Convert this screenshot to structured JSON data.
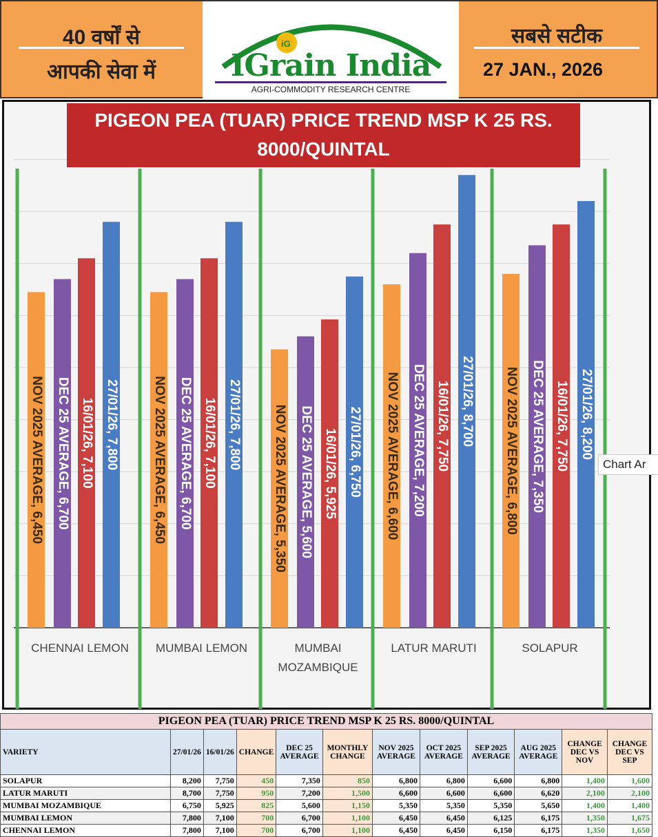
{
  "header": {
    "left_line1": "40 वर्षों से",
    "left_line2": "आपकी सेवा में",
    "logo_name": "IGrain India",
    "logo_sub": "AGRI-COMMODITY RESEARCH CENTRE",
    "logo_badge": "iG",
    "right_line1": "सबसे सटीक",
    "date": "27 JAN., 2026"
  },
  "tooltip": "Chart Ar",
  "chart_data": {
    "type": "bar",
    "title": "PIGEON PEA (TUAR) PRICE TREND MSP K 25 RS. 8000/QUINTAL",
    "title_line1": "PIGEON PEA (TUAR) PRICE TREND MSP K 25 RS.",
    "title_line2": "8000/QUINTAL",
    "categories": [
      "CHENNAI LEMON",
      "MUMBAI LEMON",
      "MUMBAI MOZAMBIQUE",
      "LATUR MARUTI",
      "SOLAPUR"
    ],
    "series": [
      {
        "name": "NOV 2025 AVERAGE",
        "color": "#f39a42",
        "values": [
          6450,
          6450,
          5350,
          6600,
          6800
        ]
      },
      {
        "name": "DEC 25 AVERAGE",
        "color": "#7e58a6",
        "values": [
          6700,
          6700,
          5600,
          7200,
          7350
        ]
      },
      {
        "name": "16/01/26",
        "color": "#c9403f",
        "values": [
          7100,
          7100,
          5925,
          7750,
          7750
        ]
      },
      {
        "name": "27/01/26",
        "color": "#4a7cc4",
        "values": [
          7800,
          7800,
          6750,
          8700,
          8200
        ]
      }
    ],
    "ylim": [
      0,
      9000
    ],
    "grid": true,
    "legend": "none"
  },
  "table": {
    "caption": "PIGEON PEA (TUAR) PRICE TREND MSP K 25 RS. 8000/QUINTAL",
    "headers": [
      "VARIETY",
      "27/01/26",
      "16/01/26",
      "CHANGE",
      "DEC 25 AVERAGE",
      "MONTHLY CHANGE",
      "NOV 2025 AVERAGE",
      "OCT 2025 AVERAGE",
      "SEP 2025 AVERAGE",
      "AUG 2025 AVERAGE",
      "CHANGE DEC VS NOV",
      "CHANGE DEC VS SEP"
    ],
    "rows": [
      [
        "SOLAPUR",
        "8,200",
        "7,750",
        "450",
        "7,350",
        "850",
        "6,800",
        "6,800",
        "6,600",
        "6,800",
        "1,400",
        "1,600"
      ],
      [
        "LATUR MARUTI",
        "8,700",
        "7,750",
        "950",
        "7,200",
        "1,500",
        "6,600",
        "6,600",
        "6,600",
        "6,620",
        "2,100",
        "2,100"
      ],
      [
        "MUMBAI MOZAMBIQUE",
        "6,750",
        "5,925",
        "825",
        "5,600",
        "1,150",
        "5,350",
        "5,350",
        "5,350",
        "5,650",
        "1,400",
        "1,400"
      ],
      [
        "MUMBAI LEMON",
        "7,800",
        "7,100",
        "700",
        "6,700",
        "1,100",
        "6,450",
        "6,450",
        "6,125",
        "6,175",
        "1,350",
        "1,675"
      ],
      [
        "CHENNAI LEMON",
        "7,800",
        "7,100",
        "700",
        "6,700",
        "1,100",
        "6,450",
        "6,450",
        "6,150",
        "6,175",
        "1,350",
        "1,650"
      ]
    ]
  }
}
